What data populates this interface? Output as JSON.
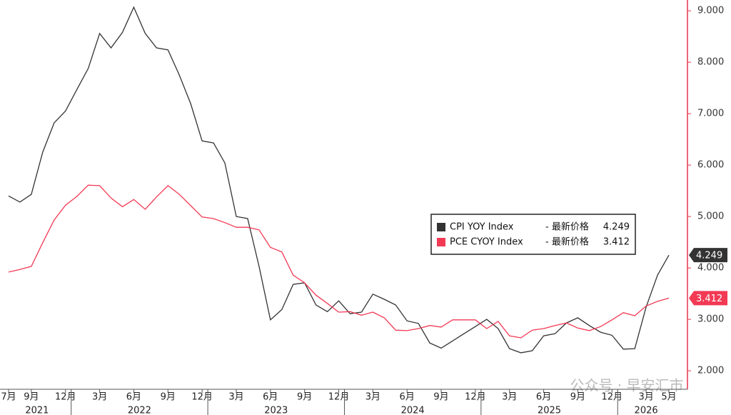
{
  "chart_data": {
    "type": "line",
    "x": [
      "2021-07",
      "2021-08",
      "2021-09",
      "2021-10",
      "2021-11",
      "2021-12",
      "2022-01",
      "2022-02",
      "2022-03",
      "2022-04",
      "2022-05",
      "2022-06",
      "2022-07",
      "2022-08",
      "2022-09",
      "2022-10",
      "2022-11",
      "2022-12",
      "2023-01",
      "2023-02",
      "2023-03",
      "2023-04",
      "2023-05",
      "2023-06",
      "2023-07",
      "2023-08",
      "2023-09",
      "2023-10",
      "2023-11",
      "2023-12",
      "2024-01",
      "2024-02",
      "2024-03",
      "2024-04",
      "2024-05",
      "2024-06",
      "2024-07",
      "2024-08",
      "2024-09",
      "2024-10",
      "2024-11",
      "2024-12",
      "2025-01",
      "2025-02",
      "2025-03",
      "2025-04",
      "2025-05",
      "2025-06",
      "2025-07",
      "2025-08",
      "2025-09",
      "2025-10",
      "2025-11",
      "2025-12",
      "2026-01",
      "2026-02",
      "2026-03",
      "2026-04",
      "2026-05"
    ],
    "series": [
      {
        "name": "CPI YOY Index",
        "color": "#333333",
        "values": [
          5.4,
          5.28,
          5.43,
          6.25,
          6.82,
          7.05,
          7.47,
          7.88,
          8.56,
          8.28,
          8.58,
          9.07,
          8.56,
          8.28,
          8.24,
          7.75,
          7.19,
          6.47,
          6.43,
          6.04,
          5.0,
          4.96,
          4.03,
          2.99,
          3.19,
          3.68,
          3.71,
          3.28,
          3.15,
          3.36,
          3.11,
          3.14,
          3.49,
          3.39,
          3.28,
          2.97,
          2.92,
          2.54,
          2.44,
          2.58,
          2.72,
          2.86,
          3.0,
          2.82,
          2.43,
          2.35,
          2.39,
          2.68,
          2.72,
          2.93,
          3.03,
          2.88,
          2.75,
          2.69,
          2.42,
          2.43,
          3.24,
          3.86,
          4.249
        ]
      },
      {
        "name": "PCE CYOY Index",
        "color": "#f23a55",
        "values": [
          3.92,
          3.97,
          4.03,
          4.49,
          4.93,
          5.22,
          5.39,
          5.61,
          5.6,
          5.36,
          5.19,
          5.33,
          5.14,
          5.38,
          5.6,
          5.43,
          5.21,
          4.99,
          4.96,
          4.88,
          4.79,
          4.79,
          4.74,
          4.4,
          4.31,
          3.86,
          3.71,
          3.47,
          3.31,
          3.14,
          3.15,
          3.08,
          3.14,
          3.03,
          2.79,
          2.78,
          2.82,
          2.88,
          2.85,
          2.99,
          2.99,
          2.99,
          2.82,
          2.96,
          2.68,
          2.64,
          2.79,
          2.82,
          2.88,
          2.93,
          2.83,
          2.78,
          2.86,
          2.99,
          3.13,
          3.07,
          3.26,
          3.35,
          3.412
        ]
      }
    ],
    "legend_suffix": "- 最新价格",
    "ylim": [
      1.64,
      9.21
    ],
    "yticks": [
      {
        "value": 2,
        "label": "2.000"
      },
      {
        "value": 3,
        "label": "3.000"
      },
      {
        "value": 4,
        "label": "4.000"
      },
      {
        "value": 5,
        "label": "5.000"
      },
      {
        "value": 6,
        "label": "6.000"
      },
      {
        "value": 7,
        "label": "7.000"
      },
      {
        "value": 8,
        "label": "8.000"
      },
      {
        "value": 9,
        "label": "9.000"
      }
    ],
    "axis_color": "#e8334a",
    "xticks": [
      {
        "value": "2021-07",
        "label": "7月"
      },
      {
        "value": "2021-09",
        "label": "9月"
      },
      {
        "value": "2021-12",
        "label": "12月"
      },
      {
        "value": "2022-03",
        "label": "3月"
      },
      {
        "value": "2022-06",
        "label": "6月"
      },
      {
        "value": "2022-09",
        "label": "9月"
      },
      {
        "value": "2022-12",
        "label": "12月"
      },
      {
        "value": "2023-03",
        "label": "3月"
      },
      {
        "value": "2023-06",
        "label": "6月"
      },
      {
        "value": "2023-09",
        "label": "9月"
      },
      {
        "value": "2023-12",
        "label": "12月"
      },
      {
        "value": "2024-03",
        "label": "3月"
      },
      {
        "value": "2024-06",
        "label": "6月"
      },
      {
        "value": "2024-09",
        "label": "9月"
      },
      {
        "value": "2024-12",
        "label": "12月"
      },
      {
        "value": "2025-03",
        "label": "3月"
      },
      {
        "value": "2025-06",
        "label": "6月"
      },
      {
        "value": "2025-09",
        "label": "9月"
      },
      {
        "value": "2025-12",
        "label": "12月"
      },
      {
        "value": "2026-03",
        "label": "3月"
      },
      {
        "value": "2026-05",
        "label": "5月"
      }
    ],
    "year_labels": [
      "2021",
      "2022",
      "2023",
      "2024",
      "2025",
      "2026"
    ],
    "watermark": "公众号 · 早安汇市"
  }
}
